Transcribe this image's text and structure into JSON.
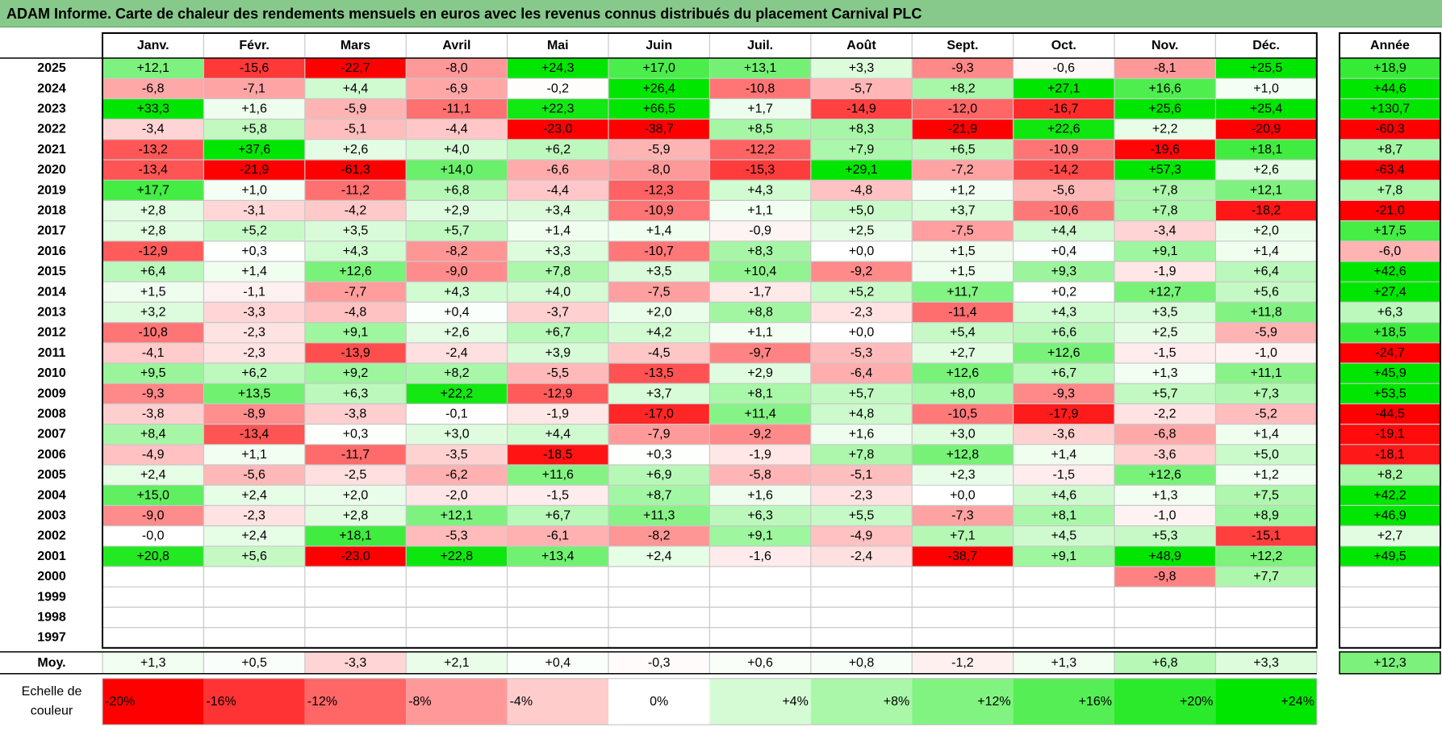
{
  "title": "ADAM Informe. Carte de chaleur des rendements mensuels en euros avec les revenus connus distribués du placement Carnival PLC",
  "chart_data": {
    "type": "heatmap",
    "months": [
      "Janv.",
      "Févr.",
      "Mars",
      "Avril",
      "Mai",
      "Juin",
      "Juil.",
      "Août",
      "Sept.",
      "Oct.",
      "Nov.",
      "Déc."
    ],
    "year_header": "Année",
    "average_label": "Moy.",
    "years": [
      "2025",
      "2024",
      "2023",
      "2022",
      "2021",
      "2020",
      "2019",
      "2018",
      "2017",
      "2016",
      "2015",
      "2014",
      "2013",
      "2012",
      "2011",
      "2010",
      "2009",
      "2008",
      "2007",
      "2006",
      "2005",
      "2004",
      "2003",
      "2002",
      "2001",
      "2000",
      "1999",
      "1998",
      "1997"
    ],
    "values": [
      [
        "+12,1",
        "-15,6",
        "-22,7",
        "-8,0",
        "+24,3",
        "+17,0",
        "+13,1",
        "+3,3",
        "-9,3",
        "-0,6",
        "-8,1",
        "+25,5"
      ],
      [
        "-6,8",
        "-7,1",
        "+4,4",
        "-6,9",
        "-0,2",
        "+26,4",
        "-10,8",
        "-5,7",
        "+8,2",
        "+27,1",
        "+16,6",
        "+1,0"
      ],
      [
        "+33,3",
        "+1,6",
        "-5,9",
        "-11,1",
        "+22,3",
        "+66,5",
        "+1,7",
        "-14,9",
        "-12,0",
        "-16,7",
        "+25,6",
        "+25,4"
      ],
      [
        "-3,4",
        "+5,8",
        "-5,1",
        "-4,4",
        "-23,0",
        "-38,7",
        "+8,5",
        "+8,3",
        "-21,9",
        "+22,6",
        "+2,2",
        "-20,9"
      ],
      [
        "-13,2",
        "+37,6",
        "+2,6",
        "+4,0",
        "+6,2",
        "-5,9",
        "-12,2",
        "+7,9",
        "+6,5",
        "-10,9",
        "-19,6",
        "+18,1"
      ],
      [
        "-13,4",
        "-21,9",
        "-61,3",
        "+14,0",
        "-6,6",
        "-8,0",
        "-15,3",
        "+29,1",
        "-7,2",
        "-14,2",
        "+57,3",
        "+2,6"
      ],
      [
        "+17,7",
        "+1,0",
        "-11,2",
        "+6,8",
        "-4,4",
        "-12,3",
        "+4,3",
        "-4,8",
        "+1,2",
        "-5,6",
        "+7,8",
        "+12,1"
      ],
      [
        "+2,8",
        "-3,1",
        "-4,2",
        "+2,9",
        "+3,4",
        "-10,9",
        "+1,1",
        "+5,0",
        "+3,7",
        "-10,6",
        "+7,8",
        "-18,2"
      ],
      [
        "+2,8",
        "+5,2",
        "+3,5",
        "+5,7",
        "+1,4",
        "+1,4",
        "-0,9",
        "+2,5",
        "-7,5",
        "+4,4",
        "-3,4",
        "+2,0"
      ],
      [
        "-12,9",
        "+0,3",
        "+4,3",
        "-8,2",
        "+3,3",
        "-10,7",
        "+8,3",
        "+0,0",
        "+1,5",
        "+0,4",
        "+9,1",
        "+1,4"
      ],
      [
        "+6,4",
        "+1,4",
        "+12,6",
        "-9,0",
        "+7,8",
        "+3,5",
        "+10,4",
        "-9,2",
        "+1,5",
        "+9,3",
        "-1,9",
        "+6,4"
      ],
      [
        "+1,5",
        "-1,1",
        "-7,7",
        "+4,3",
        "+4,0",
        "-7,5",
        "-1,7",
        "+5,2",
        "+11,7",
        "+0,2",
        "+12,7",
        "+5,6"
      ],
      [
        "+3,2",
        "-3,3",
        "-4,8",
        "+0,4",
        "-3,7",
        "+2,0",
        "+8,8",
        "-2,3",
        "-11,4",
        "+4,3",
        "+3,5",
        "+11,8"
      ],
      [
        "-10,8",
        "-2,3",
        "+9,1",
        "+2,6",
        "+6,7",
        "+4,2",
        "+1,1",
        "+0,0",
        "+5,4",
        "+6,6",
        "+2,5",
        "-5,9"
      ],
      [
        "-4,1",
        "-2,3",
        "-13,9",
        "-2,4",
        "+3,9",
        "-4,5",
        "-9,7",
        "-5,3",
        "+2,7",
        "+12,6",
        "-1,5",
        "-1,0"
      ],
      [
        "+9,5",
        "+6,2",
        "+9,2",
        "+8,2",
        "-5,5",
        "-13,5",
        "+2,9",
        "-6,4",
        "+12,6",
        "+6,7",
        "+1,3",
        "+11,1"
      ],
      [
        "-9,3",
        "+13,5",
        "+6,3",
        "+22,2",
        "-12,9",
        "+3,7",
        "+8,1",
        "+5,7",
        "+8,0",
        "-9,3",
        "+5,7",
        "+7,3"
      ],
      [
        "-3,8",
        "-8,9",
        "-3,8",
        "-0,1",
        "-1,9",
        "-17,0",
        "+11,4",
        "+4,8",
        "-10,5",
        "-17,9",
        "-2,2",
        "-5,2"
      ],
      [
        "+8,4",
        "-13,4",
        "+0,3",
        "+3,0",
        "+4,4",
        "-7,9",
        "-9,2",
        "+1,6",
        "+3,0",
        "-3,6",
        "-6,8",
        "+1,4"
      ],
      [
        "-4,9",
        "+1,1",
        "-11,7",
        "-3,5",
        "-18,5",
        "+0,3",
        "-1,9",
        "+7,8",
        "+12,8",
        "+1,4",
        "-3,6",
        "+5,0"
      ],
      [
        "+2,4",
        "-5,6",
        "-2,5",
        "-6,2",
        "+11,6",
        "+6,9",
        "-5,8",
        "-5,1",
        "+2,3",
        "-1,5",
        "+12,6",
        "+1,2"
      ],
      [
        "+15,0",
        "+2,4",
        "+2,0",
        "-2,0",
        "-1,5",
        "+8,7",
        "+1,6",
        "-2,3",
        "+0,0",
        "+4,6",
        "+1,3",
        "+7,5"
      ],
      [
        "-9,0",
        "-2,3",
        "+2,8",
        "+12,1",
        "+6,7",
        "+11,3",
        "+6,3",
        "+5,5",
        "-7,3",
        "+8,1",
        "-1,0",
        "+8,9"
      ],
      [
        "-0,0",
        "+2,4",
        "+18,1",
        "-5,3",
        "-6,1",
        "-8,2",
        "+9,1",
        "-4,9",
        "+7,1",
        "+4,5",
        "+5,3",
        "-15,1"
      ],
      [
        "+20,8",
        "+5,6",
        "-23,0",
        "+22,8",
        "+13,4",
        "+2,4",
        "-1,6",
        "-2,4",
        "-38,7",
        "+9,1",
        "+48,9",
        "+12,2"
      ],
      [
        null,
        null,
        null,
        null,
        null,
        null,
        null,
        null,
        null,
        null,
        "-9,8",
        "+7,7"
      ],
      [
        null,
        null,
        null,
        null,
        null,
        null,
        null,
        null,
        null,
        null,
        null,
        null
      ],
      [
        null,
        null,
        null,
        null,
        null,
        null,
        null,
        null,
        null,
        null,
        null,
        null
      ],
      [
        null,
        null,
        null,
        null,
        null,
        null,
        null,
        null,
        null,
        null,
        null,
        null
      ]
    ],
    "annual": [
      "+18,9",
      "+44,6",
      "+130,7",
      "-60,3",
      "+8,7",
      "-63,4",
      "+7,8",
      "-21,0",
      "+17,5",
      "-6,0",
      "+42,6",
      "+27,4",
      "+6,3",
      "+18,5",
      "-24,7",
      "+45,9",
      "+53,5",
      "-44,5",
      "-19,1",
      "-18,1",
      "+8,2",
      "+42,2",
      "+46,9",
      "+2,7",
      "+49,5",
      null,
      null,
      null,
      null
    ],
    "averages": [
      "+1,3",
      "+0,5",
      "-3,3",
      "+2,1",
      "+0,4",
      "-0,3",
      "+0,6",
      "+0,8",
      "-1,2",
      "+1,3",
      "+6,8",
      "+3,3"
    ],
    "average_annual": "+12,3",
    "scale_label_lines": [
      "Echelle de",
      "couleur"
    ],
    "scale": [
      "-20%",
      "-16%",
      "-12%",
      "-8%",
      "-4%",
      "0%",
      "+4%",
      "+8%",
      "+12%",
      "+16%",
      "+20%",
      "+24%"
    ],
    "scale_values": [
      -20,
      -16,
      -12,
      -8,
      -4,
      0,
      4,
      8,
      12,
      16,
      20,
      24
    ],
    "colors": {
      "negative": "#ff0000",
      "positive": "#00e600",
      "neutral": "#ffffff",
      "title_bg": "#86c98a"
    }
  }
}
